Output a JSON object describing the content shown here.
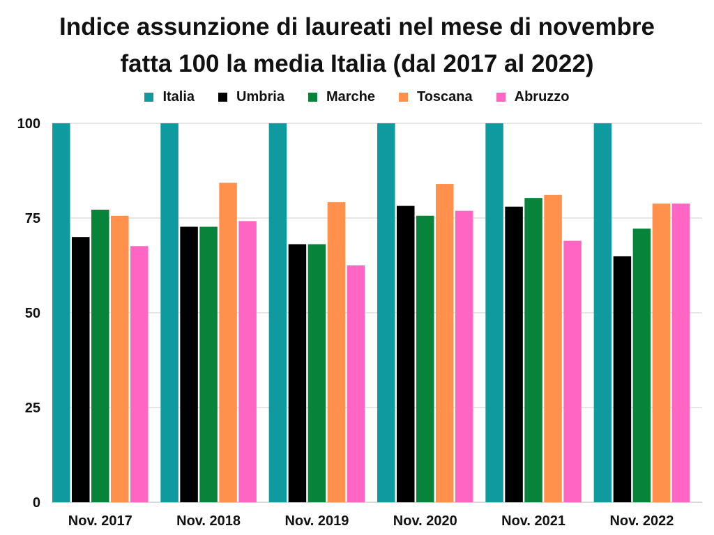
{
  "chart_data": {
    "type": "bar",
    "title_lines": [
      "Indice assunzione di laureati nel mese di novembre",
      "fatta 100 la media Italia (dal 2017 al 2022)"
    ],
    "categories": [
      "Nov. 2017",
      "Nov. 2018",
      "Nov. 2019",
      "Nov. 2020",
      "Nov. 2021",
      "Nov. 2022"
    ],
    "series": [
      {
        "name": "Italia",
        "color": "#0e9a9e",
        "values": [
          100,
          100,
          100,
          100,
          100,
          100
        ]
      },
      {
        "name": "Umbria",
        "color": "#000000",
        "values": [
          70,
          72.7,
          68.1,
          78.2,
          78,
          64.9
        ]
      },
      {
        "name": "Marche",
        "color": "#07843a",
        "values": [
          77.2,
          72.7,
          68.1,
          75.6,
          80.3,
          72.2
        ]
      },
      {
        "name": "Toscana",
        "color": "#ff914d",
        "values": [
          75.6,
          84.3,
          79.2,
          84,
          81.1,
          78.8
        ]
      },
      {
        "name": "Abruzzo",
        "color": "#ff66c4",
        "values": [
          67.6,
          74.2,
          62.5,
          76.9,
          69,
          78.8
        ]
      }
    ],
    "yticks": [
      0,
      25,
      50,
      75,
      100
    ],
    "ylim": [
      0,
      100
    ],
    "grid": true,
    "legend_position": "top-center",
    "xlabel": "",
    "ylabel": ""
  }
}
